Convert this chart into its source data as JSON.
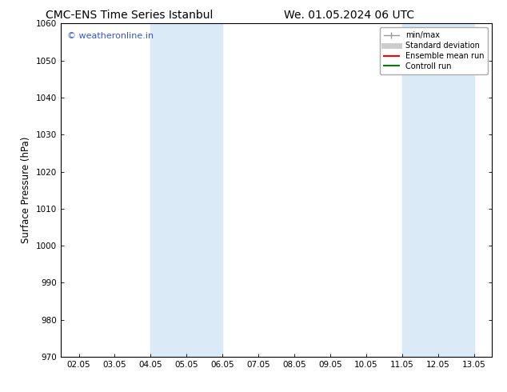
{
  "title_left": "CMC-ENS Time Series Istanbul",
  "title_right": "We. 01.05.2024 06 UTC",
  "ylabel": "Surface Pressure (hPa)",
  "ylim": [
    970,
    1060
  ],
  "yticks": [
    970,
    980,
    990,
    1000,
    1010,
    1020,
    1030,
    1040,
    1050,
    1060
  ],
  "xtick_labels": [
    "02.05",
    "03.05",
    "04.05",
    "05.05",
    "06.05",
    "07.05",
    "08.05",
    "09.05",
    "10.05",
    "11.05",
    "12.05",
    "13.05"
  ],
  "xtick_positions": [
    0,
    1,
    2,
    3,
    4,
    5,
    6,
    7,
    8,
    9,
    10,
    11
  ],
  "shaded_bands": [
    {
      "x_start": 2,
      "x_end": 4,
      "color": "#daeaf7"
    },
    {
      "x_start": 9,
      "x_end": 11,
      "color": "#daeaf7"
    }
  ],
  "watermark_text": "© weatheronline.in",
  "watermark_color": "#3355cc",
  "legend_entries": [
    {
      "label": "min/max",
      "color": "#999999",
      "lw": 1.0
    },
    {
      "label": "Standard deviation",
      "color": "#cccccc",
      "lw": 5
    },
    {
      "label": "Ensemble mean run",
      "color": "#ff0000",
      "lw": 1.5
    },
    {
      "label": "Controll run",
      "color": "#008000",
      "lw": 1.5
    }
  ],
  "bg_color": "#ffffff",
  "spine_color": "#000000",
  "title_fontsize": 10,
  "tick_fontsize": 7.5,
  "ylabel_fontsize": 8.5,
  "legend_fontsize": 7,
  "watermark_fontsize": 8
}
